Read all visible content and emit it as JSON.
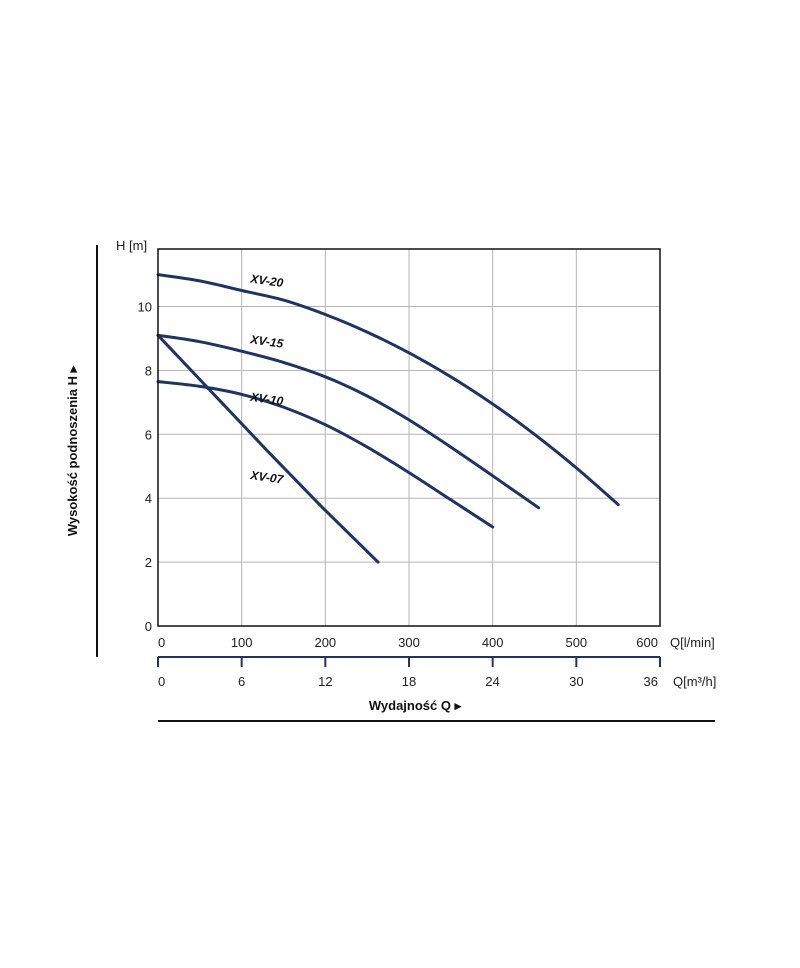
{
  "chart_data": {
    "type": "line",
    "title": "",
    "ylabel_unit": "H [m]",
    "ylabel_side": "Wysokość podnoszenia H ▸",
    "x1_unit": "Q[l/min]",
    "x2_unit": "Q[m³/h]",
    "xlabel_bottom": "Wydajność Q ▸",
    "xlim": [
      0,
      600
    ],
    "ylim": [
      0,
      11.8
    ],
    "grid": true,
    "y_ticks": [
      0,
      2,
      4,
      6,
      8,
      10
    ],
    "x1_ticks": [
      0,
      100,
      200,
      300,
      400,
      500,
      600
    ],
    "x2_ticks": [
      0,
      6,
      12,
      18,
      24,
      30,
      36
    ],
    "line_color": "#1f3464",
    "series": [
      {
        "name": "XV-20",
        "x": [
          0,
          50,
          100,
          150,
          200,
          250,
          300,
          350,
          400,
          450,
          500,
          550
        ],
        "y": [
          11.0,
          10.8,
          10.5,
          10.2,
          9.75,
          9.2,
          8.55,
          7.8,
          6.95,
          6.0,
          4.95,
          3.8
        ]
      },
      {
        "name": "XV-15",
        "x": [
          0,
          50,
          100,
          150,
          200,
          250,
          300,
          350,
          400,
          455
        ],
        "y": [
          9.1,
          8.9,
          8.6,
          8.25,
          7.8,
          7.2,
          6.45,
          5.6,
          4.7,
          3.7
        ]
      },
      {
        "name": "XV-10",
        "x": [
          0,
          50,
          100,
          150,
          200,
          250,
          300,
          350,
          400
        ],
        "y": [
          7.65,
          7.5,
          7.25,
          6.85,
          6.3,
          5.6,
          4.8,
          3.95,
          3.1
        ]
      },
      {
        "name": "XV-07",
        "x": [
          0,
          65,
          130,
          195,
          263
        ],
        "y": [
          9.1,
          7.3,
          5.5,
          3.75,
          2.0
        ]
      }
    ],
    "annotations": [
      {
        "text": "XV-20",
        "x": 110,
        "y": 10.75
      },
      {
        "text": "XV-15",
        "x": 110,
        "y": 8.85
      },
      {
        "text": "XV-10",
        "x": 110,
        "y": 7.05
      },
      {
        "text": "XV-07",
        "x": 110,
        "y": 4.6
      }
    ]
  }
}
